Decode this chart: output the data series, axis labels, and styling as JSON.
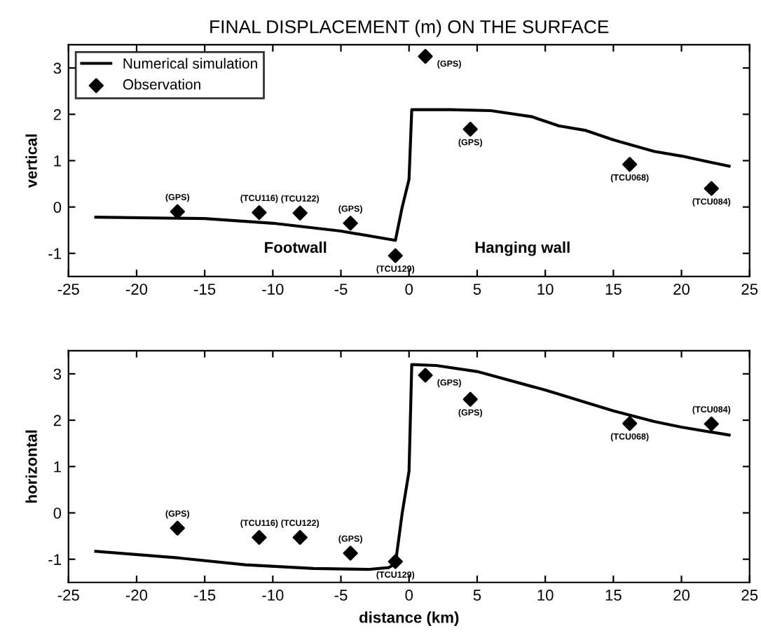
{
  "chart_data": [
    {
      "type": "line",
      "title": "FINAL DISPLACEMENT (m) ON THE SURFACE",
      "ylabel": "vertical",
      "xlim": [
        -25,
        25
      ],
      "xticks": [
        -25,
        -20,
        -15,
        -10,
        -5,
        0,
        5,
        10,
        15,
        20,
        25
      ],
      "ylim": [
        -1.5,
        3.5
      ],
      "yticks": [
        -1,
        0,
        1,
        2,
        3
      ],
      "legend": "top left",
      "grid": false,
      "series": [
        {
          "name": "Numerical simulation",
          "type": "line",
          "color": "#000000",
          "marker": "none",
          "line_style": "solid",
          "x": [
            -23,
            -15,
            -10,
            -5,
            -1,
            -0.5,
            0,
            0.2,
            3,
            6,
            9,
            11,
            13,
            15,
            18,
            20,
            23.5
          ],
          "values": [
            -0.22,
            -0.25,
            -0.35,
            -0.52,
            -0.72,
            0,
            0.6,
            2.1,
            2.1,
            2.08,
            1.95,
            1.75,
            1.65,
            1.45,
            1.2,
            1.1,
            0.88
          ]
        },
        {
          "name": "Observation",
          "type": "scatter",
          "color": "#000000",
          "marker": "diamond",
          "x": [
            -17,
            -11,
            -8,
            -4.3,
            -1,
            1.2,
            4.5,
            16.2,
            22.2
          ],
          "values": [
            -0.1,
            -0.12,
            -0.13,
            -0.35,
            -1.05,
            3.25,
            1.68,
            0.92,
            0.4
          ]
        }
      ],
      "annotations": [
        {
          "text": "(GPS)",
          "x": -17,
          "y": -0.1
        },
        {
          "text": "(TCU116)",
          "x": -11,
          "y": -0.12
        },
        {
          "text": "(TCU122)",
          "x": -8,
          "y": -0.13
        },
        {
          "text": "(GPS)",
          "x": -4.3,
          "y": -0.35
        },
        {
          "text": "(TCU129)",
          "x": -1,
          "y": -1.05
        },
        {
          "text": "(GPS)",
          "x": 1.2,
          "y": 3.25
        },
        {
          "text": "(GPS)",
          "x": 4.5,
          "y": 1.68
        },
        {
          "text": "(TCU068)",
          "x": 16.2,
          "y": 0.92
        },
        {
          "text": "(TCU084)",
          "x": 22.2,
          "y": 0.4
        },
        "Footwall",
        "Hanging wall"
      ]
    },
    {
      "type": "line",
      "xlabel": "distance (km)",
      "ylabel": "horizontal",
      "xlim": [
        -25,
        25
      ],
      "xticks": [
        -25,
        -20,
        -15,
        -10,
        -5,
        0,
        5,
        10,
        15,
        20,
        25
      ],
      "ylim": [
        -1.5,
        3.5
      ],
      "yticks": [
        -1,
        0,
        1,
        2,
        3
      ],
      "grid": false,
      "series": [
        {
          "type": "line",
          "color": "#000000",
          "marker": "none",
          "line_style": "solid",
          "x": [
            -23,
            -17,
            -12,
            -7,
            -3,
            -1.5,
            -1,
            -0.5,
            0,
            0.2,
            2,
            5,
            10,
            15,
            18,
            20,
            23.5
          ],
          "values": [
            -0.83,
            -0.97,
            -1.12,
            -1.2,
            -1.22,
            -1.18,
            -1.1,
            0,
            0.9,
            3.2,
            3.18,
            3.05,
            2.65,
            2.2,
            1.97,
            1.85,
            1.68
          ]
        },
        {
          "type": "scatter",
          "color": "#000000",
          "marker": "diamond",
          "x": [
            -17,
            -11,
            -8,
            -4.3,
            -1,
            1.2,
            4.5,
            16.2,
            22.2
          ],
          "values": [
            -0.33,
            -0.53,
            -0.53,
            -0.87,
            -1.05,
            2.97,
            2.45,
            1.93,
            1.92
          ]
        }
      ],
      "annotations": [
        {
          "text": "(GPS)",
          "x": -17,
          "y": -0.33
        },
        {
          "text": "(TCU116)",
          "x": -11,
          "y": -0.53
        },
        {
          "text": "(TCU122)",
          "x": -8,
          "y": -0.53
        },
        {
          "text": "(GPS)",
          "x": -4.3,
          "y": -0.87
        },
        {
          "text": "(TCU129)",
          "x": -1,
          "y": -1.05
        },
        {
          "text": "(GPS)",
          "x": 1.2,
          "y": 2.97
        },
        {
          "text": "(GPS)",
          "x": 4.5,
          "y": 2.45
        },
        {
          "text": "(TCU068)",
          "x": 16.2,
          "y": 1.93
        },
        {
          "text": "(TCU084)",
          "x": 22.2,
          "y": 1.92
        }
      ]
    }
  ]
}
